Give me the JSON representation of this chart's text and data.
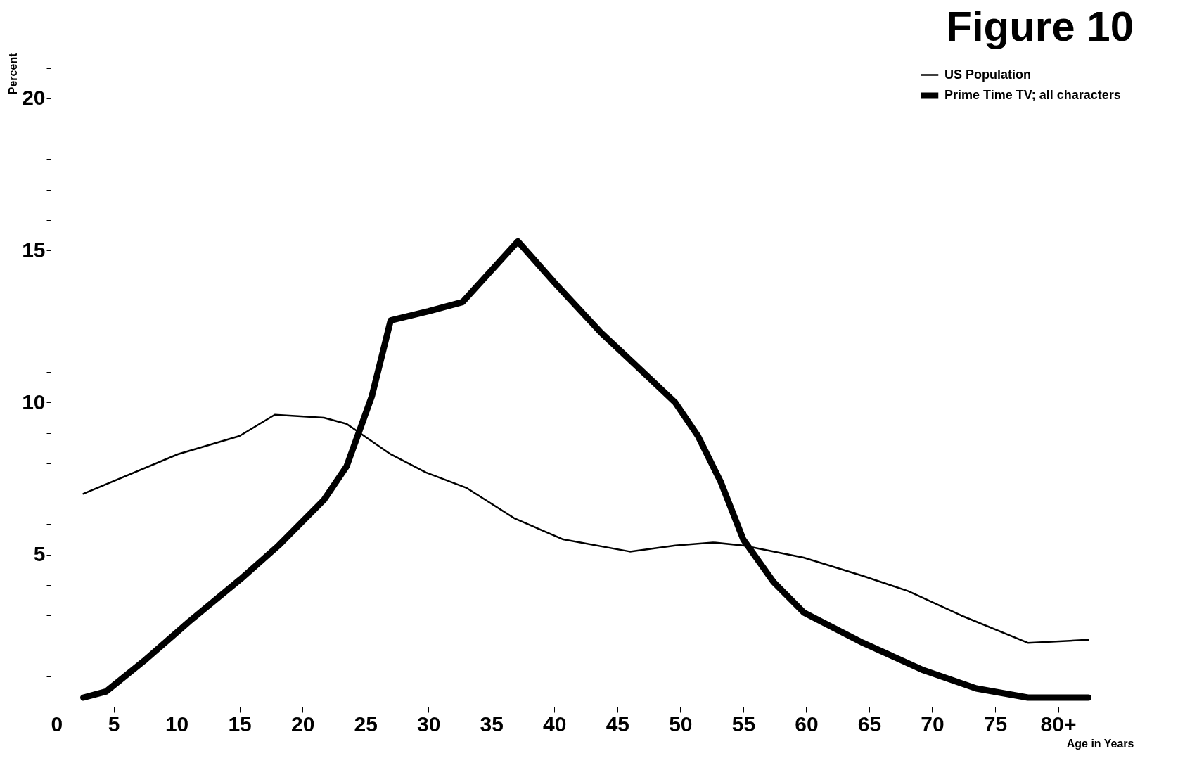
{
  "chart_data": {
    "type": "line",
    "title": "Figure 10",
    "xlabel": "Age in Years",
    "ylabel": "Percent",
    "xlim": [
      0,
      86
    ],
    "ylim": [
      0,
      21.5
    ],
    "xticks": [
      0,
      5,
      10,
      15,
      20,
      25,
      30,
      35,
      40,
      45,
      50,
      55,
      60,
      65,
      70,
      75,
      {
        "value": 80,
        "label": "80+"
      }
    ],
    "yticks": [
      {
        "value": 1,
        "label": null
      },
      {
        "value": 2,
        "label": null
      },
      {
        "value": 3,
        "label": null
      },
      {
        "value": 4,
        "label": null
      },
      5,
      {
        "value": 6,
        "label": null
      },
      {
        "value": 7,
        "label": null
      },
      {
        "value": 8,
        "label": null
      },
      {
        "value": 9,
        "label": null
      },
      10,
      {
        "value": 11,
        "label": null
      },
      {
        "value": 12,
        "label": null
      },
      {
        "value": 13,
        "label": null
      },
      {
        "value": 14,
        "label": null
      },
      15,
      {
        "value": 16,
        "label": null
      },
      {
        "value": 17,
        "label": null
      },
      {
        "value": 18,
        "label": null
      },
      {
        "value": 19,
        "label": null
      },
      20,
      {
        "value": 21,
        "label": null
      }
    ],
    "grid": false,
    "legend": "top right",
    "line_style": "solid",
    "marker": "none",
    "series": [
      {
        "name": "US Population",
        "color": "#000000",
        "x": [
          2.6,
          10.1,
          15,
          17.8,
          21.7,
          23.5,
          27,
          29.8,
          33,
          36.8,
          40.7,
          46,
          49.6,
          52.6,
          55,
          59.8,
          64.5,
          68.1,
          72.3,
          77.6,
          82.4
        ],
        "values": [
          7.0,
          8.3,
          8.9,
          9.6,
          9.5,
          9.3,
          8.3,
          7.7,
          7.2,
          6.2,
          5.5,
          5.1,
          5.3,
          5.4,
          5.3,
          4.9,
          4.3,
          3.8,
          3.0,
          2.1,
          2.2
        ]
      },
      {
        "name": "Prime Time TV; all characters",
        "color": "#000000",
        "x": [
          2.6,
          4.4,
          7.4,
          11,
          15.1,
          18.1,
          21.7,
          23.5,
          25.5,
          27,
          30,
          32.7,
          37.1,
          40.1,
          43.7,
          47.3,
          49.6,
          51.4,
          53.2,
          55,
          57.4,
          59.8,
          64.5,
          69.3,
          73.5,
          77.6,
          82.4
        ],
        "values": [
          0.3,
          0.5,
          1.5,
          2.8,
          4.2,
          5.3,
          6.8,
          7.9,
          10.2,
          12.7,
          13.0,
          13.3,
          15.3,
          13.9,
          12.3,
          10.9,
          10.0,
          8.9,
          7.4,
          5.5,
          4.1,
          3.1,
          2.1,
          1.2,
          0.6,
          0.3,
          0.3
        ]
      }
    ]
  }
}
